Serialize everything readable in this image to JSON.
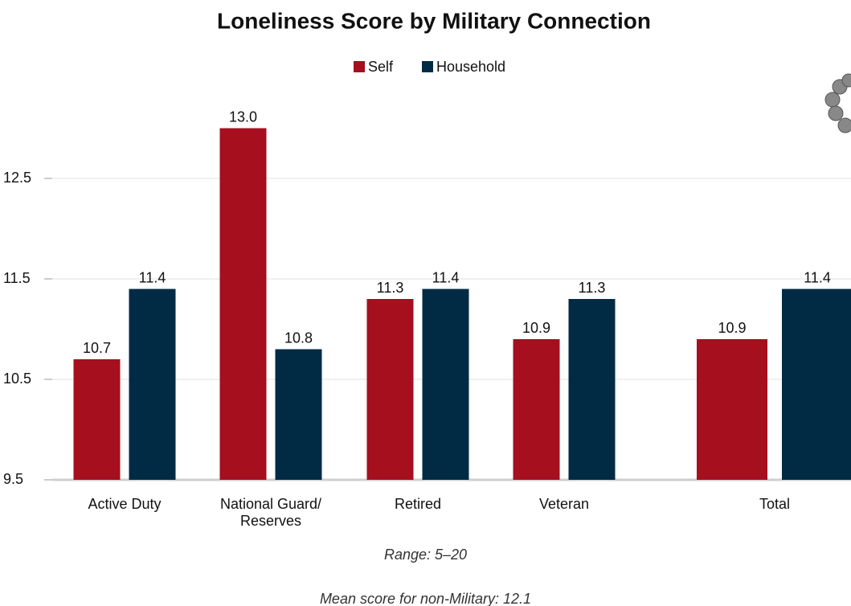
{
  "chart_data": {
    "type": "bar",
    "title": "Loneliness Score by Military Connection",
    "categories": [
      "Active Duty",
      "National Guard/ Reserves",
      "Retired",
      "Veteran",
      "Total"
    ],
    "series": [
      {
        "name": "Self",
        "color": "#a50f1e",
        "values": [
          10.7,
          13.0,
          11.3,
          10.9,
          10.9
        ],
        "value_labels": [
          "10.7",
          "13.0",
          "11.3",
          "10.9",
          "10.9"
        ]
      },
      {
        "name": "Household",
        "color": "#012b45",
        "values": [
          11.4,
          10.8,
          11.4,
          11.3,
          11.4
        ],
        "value_labels": [
          "11.4",
          "10.8",
          "11.4",
          "11.3",
          "11.4"
        ]
      }
    ],
    "ylim": [
      9.5,
      13.5
    ],
    "yticks": [
      9.5,
      10.5,
      11.5,
      12.5
    ],
    "grid": true,
    "legend": "top",
    "annotations": [
      "Range: 5–20",
      "Mean score for non-Military: 12.1"
    ]
  }
}
